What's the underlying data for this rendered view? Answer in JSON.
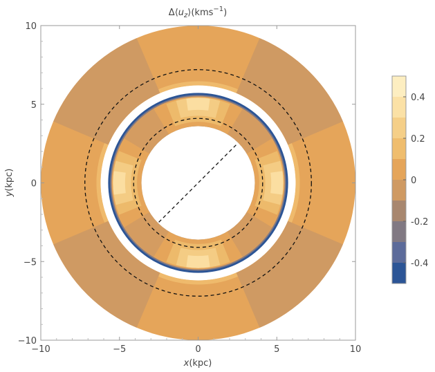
{
  "chart_data": {
    "type": "heatmap",
    "title": "Δ⟨u_z⟩(kms⁻¹)",
    "title_parts": {
      "delta": "Δ⟨",
      "u": "u",
      "sub": "z",
      "close": "⟩(kms",
      "sup": "−1",
      "end": ")"
    },
    "xlabel": "x(kpc)",
    "ylabel": "y(kpc)",
    "xlabel_parts": {
      "var": "x",
      "unit": "(kpc)"
    },
    "ylabel_parts": {
      "var": "y",
      "unit": "(kpc)"
    },
    "xlim": [
      -10,
      10
    ],
    "ylim": [
      -10,
      10
    ],
    "x_ticks": [
      -10,
      -5,
      0,
      5,
      10
    ],
    "y_ticks": [
      -10,
      -5,
      0,
      5,
      10
    ],
    "x_tick_labels": [
      "−10",
      "−5",
      "0",
      "5",
      "10"
    ],
    "y_tick_labels": [
      "−10",
      "−5",
      "0",
      "5",
      "10"
    ],
    "colorbar": {
      "range": [
        -0.5,
        0.5
      ],
      "tick_values": [
        0.4,
        0.2,
        0,
        -0.2,
        -0.4
      ],
      "tick_labels": [
        "0.4",
        "0.2",
        "0",
        "-0.2",
        "-0.4"
      ],
      "levels": [
        {
          "from": 0.4,
          "to": 0.5,
          "color": "#fdeec1"
        },
        {
          "from": 0.3,
          "to": 0.4,
          "color": "#fbe1a6"
        },
        {
          "from": 0.2,
          "to": 0.3,
          "color": "#f5cf88"
        },
        {
          "from": 0.1,
          "to": 0.2,
          "color": "#efbd6e"
        },
        {
          "from": 0.0,
          "to": 0.1,
          "color": "#e5a55a"
        },
        {
          "from": -0.1,
          "to": 0.0,
          "color": "#cf9a63"
        },
        {
          "from": -0.2,
          "to": -0.1,
          "color": "#a8876f"
        },
        {
          "from": -0.3,
          "to": -0.2,
          "color": "#817983"
        },
        {
          "from": -0.4,
          "to": -0.3,
          "color": "#5c6b9a"
        },
        {
          "from": -0.5,
          "to": -0.4,
          "color": "#2c5596"
        }
      ]
    },
    "outer_annulus": {
      "r_inner": 6.2,
      "r_outer": 10,
      "background_value": 0.05,
      "wedge_value": -0.05,
      "wedge_angles_deg": [
        45,
        135,
        225,
        315
      ],
      "wedge_half_width_deg": 22
    },
    "inner_annulus": {
      "r_inner": 3.6,
      "r_outer": 5.5,
      "background_value": 0.05,
      "corner_value": -0.05,
      "edge_fringe_values": [
        0.15,
        0.25,
        0.35
      ],
      "blue_fringe_values": [
        -0.25,
        -0.45
      ]
    },
    "reference_circles_kpc": [
      4.1,
      7.2
    ],
    "reference_line_kpc": {
      "from": [
        -2.5,
        -2.5
      ],
      "to": [
        2.5,
        2.5
      ]
    }
  }
}
